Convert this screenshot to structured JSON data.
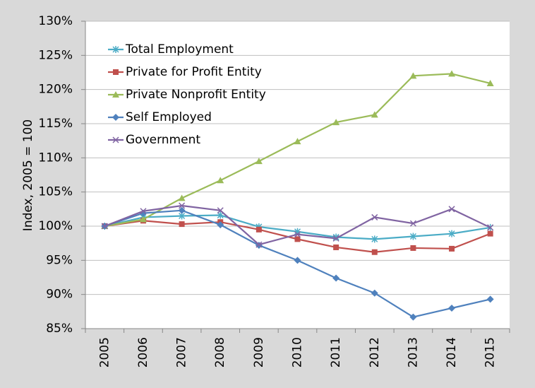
{
  "chart_data": {
    "type": "line",
    "y_label": "Index, 2005 = 100",
    "categories": [
      "2005",
      "2006",
      "2007",
      "2008",
      "2009",
      "2010",
      "2011",
      "2012",
      "2013",
      "2014",
      "2015"
    ],
    "series": [
      {
        "name": "Total Employment",
        "color": "#4bacc6",
        "marker": "asterisk",
        "values": [
          100,
          101.3,
          101.5,
          101.6,
          99.9,
          99.2,
          98.4,
          98.1,
          98.5,
          98.9,
          99.8
        ]
      },
      {
        "name": "Private for Profit Entity",
        "color": "#c0504d",
        "marker": "square",
        "values": [
          100,
          100.8,
          100.3,
          100.6,
          99.5,
          98.1,
          96.9,
          96.2,
          96.8,
          96.7,
          98.9
        ]
      },
      {
        "name": "Private Nonprofit Entity",
        "color": "#9bbb59",
        "marker": "triangle",
        "values": [
          100,
          101.0,
          104.1,
          106.7,
          109.5,
          112.4,
          115.2,
          116.3,
          122.0,
          122.3,
          120.9
        ]
      },
      {
        "name": "Self Employed",
        "color": "#4f81bd",
        "marker": "diamond",
        "values": [
          100,
          101.9,
          102.3,
          100.2,
          97.2,
          95.0,
          92.4,
          90.2,
          86.7,
          88.0,
          89.3
        ]
      },
      {
        "name": "Government",
        "color": "#8064a2",
        "marker": "x",
        "values": [
          100,
          102.2,
          103.0,
          102.3,
          97.3,
          98.8,
          98.2,
          101.3,
          100.4,
          102.5,
          99.8
        ]
      }
    ],
    "ylim": [
      85,
      130
    ],
    "yticks": [
      {
        "value": 85,
        "label": "85%"
      },
      {
        "value": 90,
        "label": "90%"
      },
      {
        "value": 95,
        "label": "95%"
      },
      {
        "value": 100,
        "label": "100%"
      },
      {
        "value": 105,
        "label": "105%"
      },
      {
        "value": 110,
        "label": "110%"
      },
      {
        "value": 115,
        "label": "115%"
      },
      {
        "value": 120,
        "label": "120%"
      },
      {
        "value": 125,
        "label": "125%"
      },
      {
        "value": 130,
        "label": "130%"
      }
    ],
    "grid": true,
    "legend": "upper-left"
  }
}
